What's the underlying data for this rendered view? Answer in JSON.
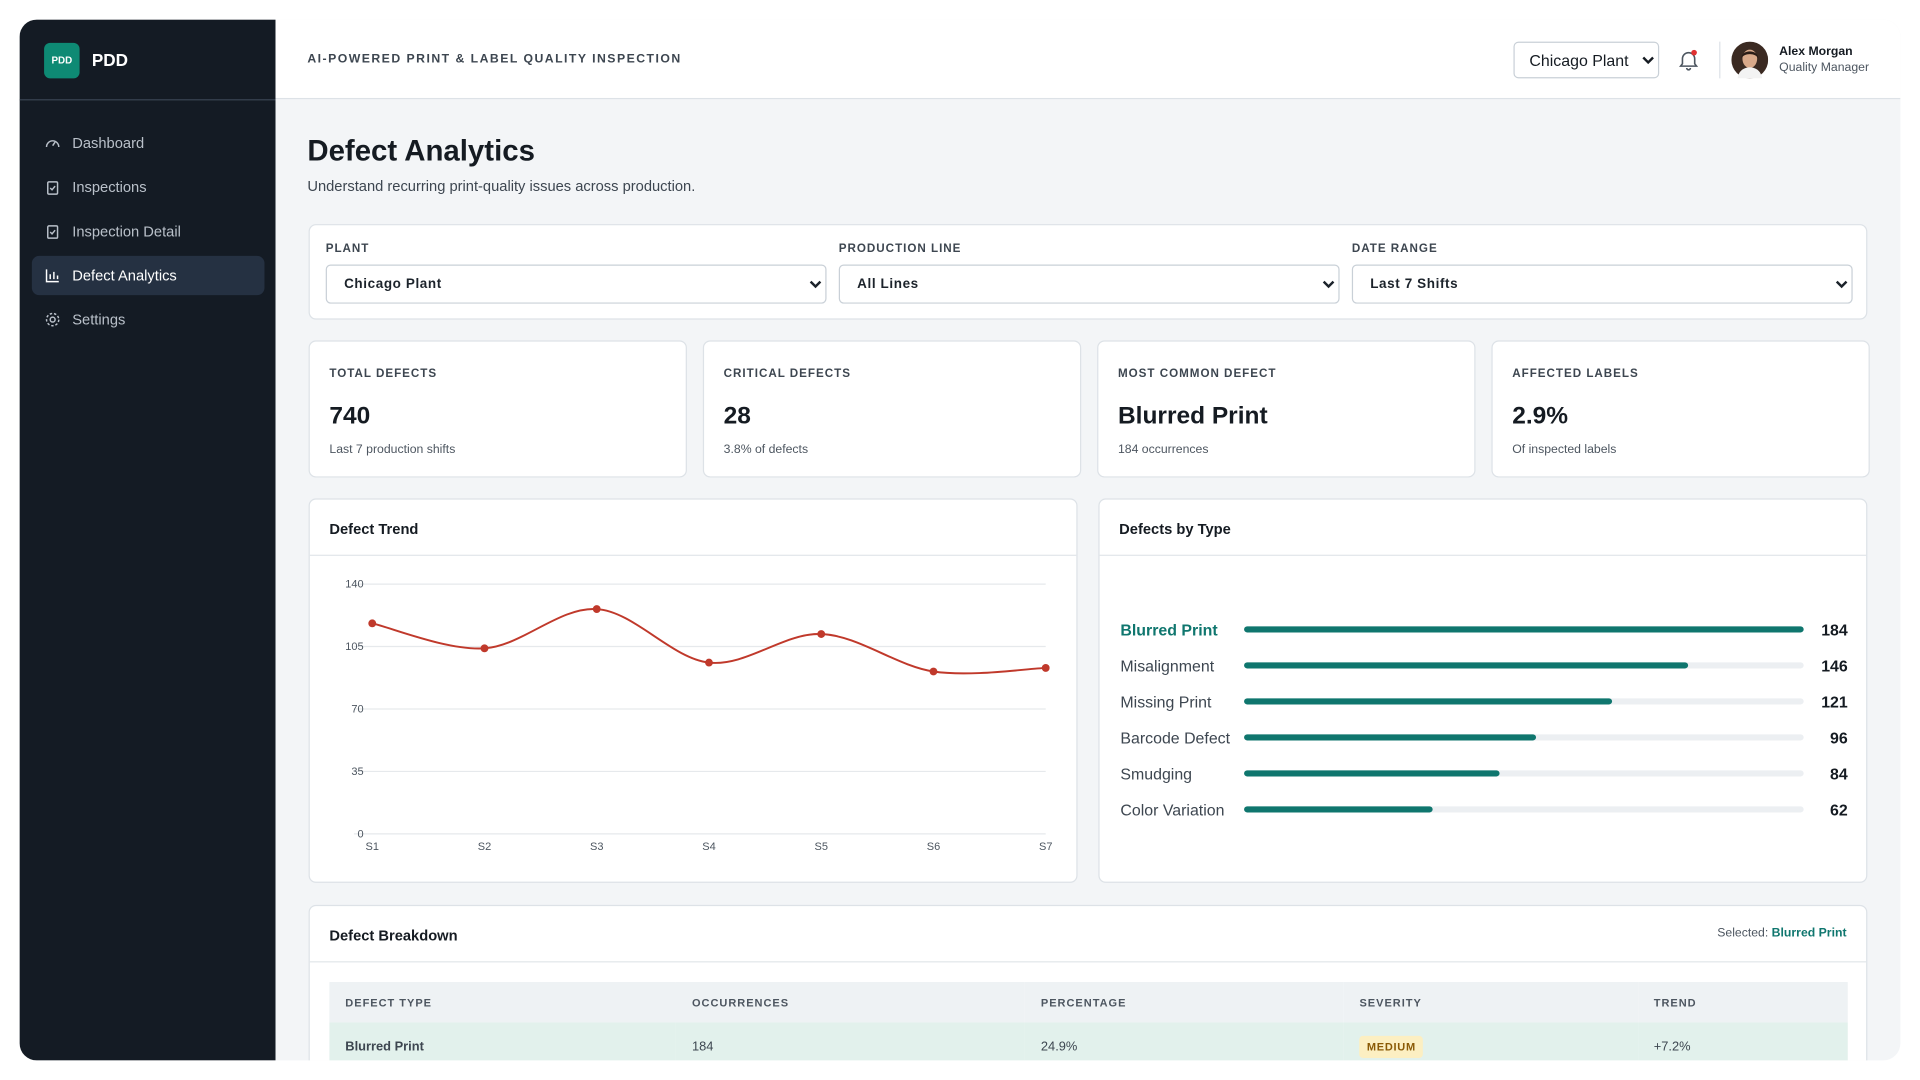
{
  "app": {
    "logo": "PDD",
    "brand": "PDD",
    "tagline": "AI-POWERED PRINT & LABEL QUALITY INSPECTION",
    "plant_select": "Chicago Plant",
    "user_name": "Alex Morgan",
    "user_role": "Quality Manager"
  },
  "nav": [
    "Dashboard",
    "Inspections",
    "Inspection Detail",
    "Defect Analytics",
    "Settings"
  ],
  "page": {
    "title": "Defect Analytics",
    "subtitle": "Understand recurring print-quality issues across production."
  },
  "filters": [
    {
      "label": "PLANT",
      "value": "Chicago Plant"
    },
    {
      "label": "PRODUCTION LINE",
      "value": "All Lines"
    },
    {
      "label": "DATE RANGE",
      "value": "Last 7 Shifts"
    }
  ],
  "kpis": [
    {
      "label": "TOTAL DEFECTS",
      "value": "740",
      "note": "Last 7 production shifts"
    },
    {
      "label": "CRITICAL DEFECTS",
      "value": "28",
      "note": "3.8% of defects"
    },
    {
      "label": "MOST COMMON DEFECT",
      "value": "Blurred Print",
      "note": "184 occurrences"
    },
    {
      "label": "AFFECTED LABELS",
      "value": "2.9%",
      "note": "Of inspected labels"
    }
  ],
  "chart_data": [
    {
      "type": "line",
      "title": "Defect Trend",
      "categories": [
        "S1",
        "S2",
        "S3",
        "S4",
        "S5",
        "S6",
        "S7"
      ],
      "values": [
        118,
        104,
        126,
        96,
        112,
        91,
        93
      ],
      "color": "#c0392b",
      "ylim": [
        0,
        140
      ],
      "yticks": [
        0,
        35,
        70,
        105,
        140
      ],
      "grid": true
    },
    {
      "type": "hbar",
      "title": "Defects by Type",
      "categories": [
        "Blurred Print",
        "Misalignment",
        "Missing Print",
        "Barcode Defect",
        "Smudging",
        "Color Variation"
      ],
      "values": [
        184,
        146,
        121,
        96,
        84,
        62
      ],
      "color": "#0f766e"
    }
  ],
  "table": {
    "title": "Defect Breakdown",
    "selected_label": "Selected:",
    "selected_value": "Blurred Print",
    "headers": [
      "DEFECT TYPE",
      "OCCURRENCES",
      "PERCENTAGE",
      "SEVERITY",
      "TREND"
    ],
    "rows": [
      [
        "Blurred Print",
        "184",
        "24.9%",
        "MEDIUM",
        "+7.2%"
      ]
    ]
  }
}
